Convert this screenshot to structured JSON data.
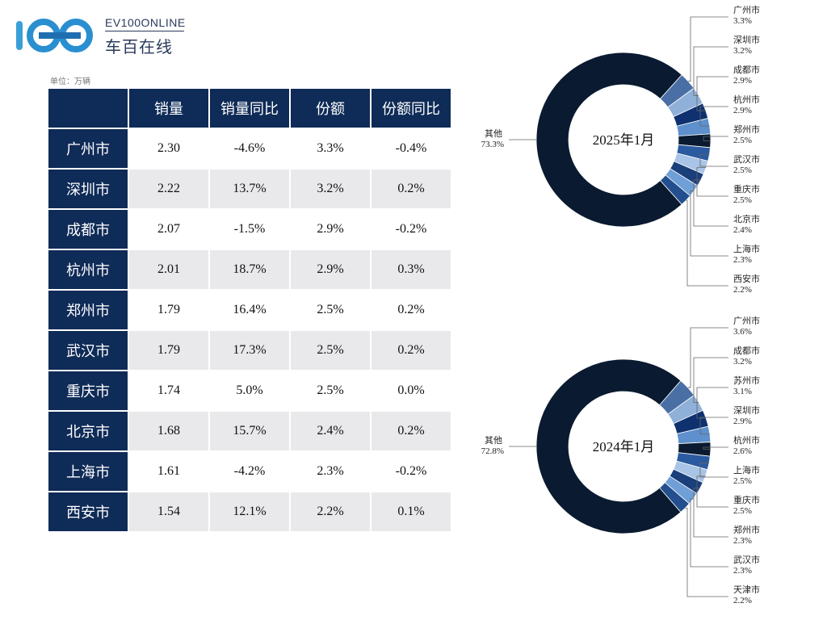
{
  "brand": {
    "en": "EV100ONLINE",
    "cn": "车百在线"
  },
  "unit_note": "单位：万辆",
  "table": {
    "headers": [
      "销量",
      "销量同比",
      "份额",
      "份额同比"
    ],
    "rows": [
      {
        "city": "广州市",
        "sales": "2.30",
        "sales_yoy": "-4.6%",
        "share": "3.3%",
        "share_yoy": "-0.4%"
      },
      {
        "city": "深圳市",
        "sales": "2.22",
        "sales_yoy": "13.7%",
        "share": "3.2%",
        "share_yoy": "0.2%"
      },
      {
        "city": "成都市",
        "sales": "2.07",
        "sales_yoy": "-1.5%",
        "share": "2.9%",
        "share_yoy": "-0.2%"
      },
      {
        "city": "杭州市",
        "sales": "2.01",
        "sales_yoy": "18.7%",
        "share": "2.9%",
        "share_yoy": "0.3%"
      },
      {
        "city": "郑州市",
        "sales": "1.79",
        "sales_yoy": "16.4%",
        "share": "2.5%",
        "share_yoy": "0.2%"
      },
      {
        "city": "武汉市",
        "sales": "1.79",
        "sales_yoy": "17.3%",
        "share": "2.5%",
        "share_yoy": "0.2%"
      },
      {
        "city": "重庆市",
        "sales": "1.74",
        "sales_yoy": "5.0%",
        "share": "2.5%",
        "share_yoy": "0.0%"
      },
      {
        "city": "北京市",
        "sales": "1.68",
        "sales_yoy": "15.7%",
        "share": "2.4%",
        "share_yoy": "0.2%"
      },
      {
        "city": "上海市",
        "sales": "1.61",
        "sales_yoy": "-4.2%",
        "share": "2.3%",
        "share_yoy": "-0.2%"
      },
      {
        "city": "西安市",
        "sales": "1.54",
        "sales_yoy": "12.1%",
        "share": "2.2%",
        "share_yoy": "0.1%"
      }
    ]
  },
  "colors": {
    "header_navy": "#0f2b57",
    "other_slice": "#0a1a30",
    "slice_palette": [
      "#4a6fa5",
      "#8fb0d8",
      "#0f3170",
      "#5d90cc",
      "#0a1a30",
      "#2a5aa0",
      "#a8c4e6",
      "#1a3f7a",
      "#6f9fd6",
      "#244f8f"
    ]
  },
  "chart_data": [
    {
      "type": "pie",
      "title": "2025年1月",
      "other": {
        "label": "其他",
        "pct": "73.3%",
        "value": 73.3
      },
      "slices": [
        {
          "label": "广州市",
          "pct": "3.3%",
          "value": 3.3
        },
        {
          "label": "深圳市",
          "pct": "3.2%",
          "value": 3.2
        },
        {
          "label": "成都市",
          "pct": "2.9%",
          "value": 2.9
        },
        {
          "label": "杭州市",
          "pct": "2.9%",
          "value": 2.9
        },
        {
          "label": "郑州市",
          "pct": "2.5%",
          "value": 2.5
        },
        {
          "label": "武汉市",
          "pct": "2.5%",
          "value": 2.5
        },
        {
          "label": "重庆市",
          "pct": "2.5%",
          "value": 2.5
        },
        {
          "label": "北京市",
          "pct": "2.4%",
          "value": 2.4
        },
        {
          "label": "上海市",
          "pct": "2.3%",
          "value": 2.3
        },
        {
          "label": "西安市",
          "pct": "2.2%",
          "value": 2.2
        }
      ]
    },
    {
      "type": "pie",
      "title": "2024年1月",
      "other": {
        "label": "其他",
        "pct": "72.8%",
        "value": 72.8
      },
      "slices": [
        {
          "label": "广州市",
          "pct": "3.6%",
          "value": 3.6
        },
        {
          "label": "成都市",
          "pct": "3.2%",
          "value": 3.2
        },
        {
          "label": "苏州市",
          "pct": "3.1%",
          "value": 3.1
        },
        {
          "label": "深圳市",
          "pct": "2.9%",
          "value": 2.9
        },
        {
          "label": "杭州市",
          "pct": "2.6%",
          "value": 2.6
        },
        {
          "label": "上海市",
          "pct": "2.5%",
          "value": 2.5
        },
        {
          "label": "重庆市",
          "pct": "2.5%",
          "value": 2.5
        },
        {
          "label": "郑州市",
          "pct": "2.3%",
          "value": 2.3
        },
        {
          "label": "武汉市",
          "pct": "2.3%",
          "value": 2.3
        },
        {
          "label": "天津市",
          "pct": "2.2%",
          "value": 2.2
        }
      ]
    }
  ]
}
